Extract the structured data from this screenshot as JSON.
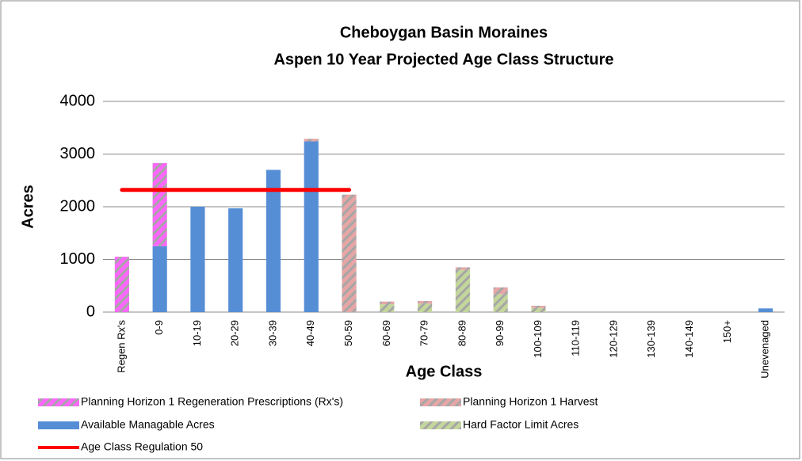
{
  "chart_data": {
    "type": "bar",
    "stacked": true,
    "title": "Cheboygan Basin Moraines",
    "subtitle": "Aspen 10 Year Projected Age Class Structure",
    "x_label": "Age Class",
    "y_label": "Acres",
    "categories": [
      "Regen Rx's",
      "0-9",
      "10-19",
      "20-29",
      "30-39",
      "40-49",
      "50-59",
      "60-69",
      "70-79",
      "80-89",
      "90-99",
      "100-109",
      "110-119",
      "120-129",
      "130-139",
      "140-149",
      "150+",
      "Unevenaged"
    ],
    "ylim": [
      0,
      4000
    ],
    "yticks": [
      0,
      1000,
      2000,
      3000,
      4000
    ],
    "grid": true,
    "legend": "bottom",
    "series": [
      {
        "name": "Planning Horizon 1 Regeneration Prescriptions (Rx's)",
        "color": "#ff66ff",
        "pattern": "hatch",
        "stack_order": 4,
        "values": [
          1050,
          1580,
          0,
          0,
          0,
          0,
          0,
          0,
          0,
          0,
          0,
          0,
          0,
          0,
          0,
          0,
          0,
          0
        ]
      },
      {
        "name": "Planning Horizon 1 Harvest",
        "color": "#e6a6a6",
        "pattern": "hatch",
        "stack_order": 3,
        "values": [
          0,
          0,
          0,
          0,
          0,
          50,
          2230,
          50,
          50,
          50,
          130,
          40,
          0,
          0,
          0,
          0,
          0,
          0
        ]
      },
      {
        "name": "Available Managable Acres",
        "color": "#558ed5",
        "stack_order": 1,
        "values": [
          0,
          1250,
          2000,
          1970,
          2700,
          3240,
          0,
          0,
          0,
          0,
          0,
          0,
          0,
          0,
          0,
          0,
          0,
          70
        ]
      },
      {
        "name": "Hard Factor Limit Acres",
        "color": "#c3d69b",
        "pattern": "hatch",
        "stack_order": 2,
        "values": [
          0,
          0,
          0,
          0,
          0,
          0,
          0,
          150,
          160,
          800,
          340,
          80,
          0,
          0,
          0,
          0,
          0,
          0
        ]
      },
      {
        "name": "Age Class Regulation 50",
        "color": "#ff0000",
        "type": "line",
        "values": [
          2320,
          2320,
          2320,
          2320,
          2320,
          2320,
          2320,
          null,
          null,
          null,
          null,
          null,
          null,
          null,
          null,
          null,
          null,
          null
        ]
      }
    ]
  }
}
